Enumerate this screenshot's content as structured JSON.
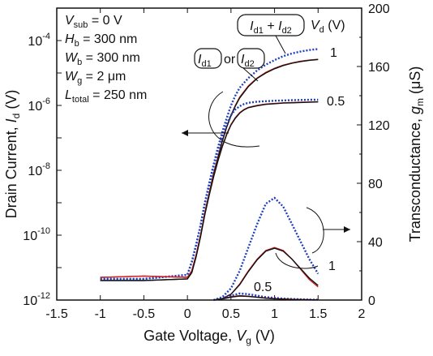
{
  "chart_data": {
    "type": "line",
    "x_axis": {
      "label": "Gate Voltage, ",
      "label_var": "V",
      "label_sub": "g",
      "label_unit": " (V)",
      "range": [
        -1.5,
        2
      ],
      "ticks": [
        "-1.5",
        "-1",
        "-0.5",
        "0",
        "0.5",
        "1",
        "1.5",
        "2"
      ]
    },
    "y_left_axis": {
      "label": "Drain Current, ",
      "label_var": "I",
      "label_sub": "d",
      "label_unit": " (V)",
      "scale": "log",
      "range": [
        1e-12,
        0.001
      ],
      "ticks": [
        {
          "base": "10",
          "exp": "-12",
          "value": 1e-12
        },
        {
          "base": "10",
          "exp": "-10",
          "value": 1e-10
        },
        {
          "base": "10",
          "exp": "-8",
          "value": 1e-08
        },
        {
          "base": "10",
          "exp": "-6",
          "value": 1e-06
        },
        {
          "base": "10",
          "exp": "-4",
          "value": 0.0001
        }
      ]
    },
    "y_right_axis": {
      "label": "Transconductance, ",
      "label_var": "g",
      "label_sub": "m",
      "label_unit": " (μS)",
      "range": [
        0,
        200
      ],
      "ticks": [
        "0",
        "40",
        "80",
        "120",
        "160",
        "200"
      ]
    },
    "params": [
      {
        "var": "V",
        "sub": "sub",
        "rest": " = 0 V"
      },
      {
        "var": "H",
        "sub": "b",
        "rest": " = 300 nm"
      },
      {
        "var": "W",
        "sub": "b",
        "rest": " = 300 nm"
      },
      {
        "var": "W",
        "sub": "g",
        "rest": " = 2 μm"
      },
      {
        "var": "L",
        "sub": "total",
        "rest": " = 250 nm"
      }
    ],
    "legend": {
      "sum_label": {
        "a": "I",
        "a_sub": "d1",
        "op": " + ",
        "b": "I",
        "b_sub": "d2"
      },
      "single_label": {
        "a": "I",
        "a_sub": "d1",
        "op": "or",
        "b": "I",
        "b_sub": "d2"
      },
      "vd_label": {
        "var": "V",
        "sub": "d",
        "unit": " (V)"
      }
    },
    "curve_labels": {
      "vd1_id": "1",
      "vd05_id": "0.5",
      "vd1_gm": "1",
      "vd05_gm": "0.5"
    },
    "series": [
      {
        "axis": "left",
        "color": "#1f3fbf",
        "style": "dotted",
        "x": [
          -1,
          -0.5,
          0,
          0.05,
          0.1,
          0.15,
          0.2,
          0.25,
          0.3,
          0.35,
          0.4,
          0.45,
          0.5,
          0.55,
          0.6,
          0.7,
          0.8,
          0.9,
          1.0,
          1.1,
          1.2,
          1.3,
          1.4,
          1.5
        ],
        "y": [
          4.5e-12,
          4.5e-12,
          6e-12,
          1.5e-11,
          5e-11,
          2e-10,
          1e-09,
          4e-09,
          1.5e-08,
          5e-08,
          1.5e-07,
          4e-07,
          1e-06,
          2e-06,
          3.5e-06,
          7e-06,
          1.2e-05,
          1.8e-05,
          2.5e-05,
          3.3e-05,
          4e-05,
          4.6e-05,
          5.1e-05,
          5.5e-05
        ]
      },
      {
        "axis": "left",
        "color": "#d02020",
        "style": "solid",
        "x": [
          -1,
          -0.5,
          0,
          0.05,
          0.1,
          0.15,
          0.2,
          0.25,
          0.3,
          0.35,
          0.4,
          0.45,
          0.5,
          0.55,
          0.6,
          0.7,
          0.8,
          0.9,
          1.0,
          1.1,
          1.2,
          1.3,
          1.4,
          1.5
        ],
        "y": [
          5e-12,
          5.5e-12,
          5e-12,
          8e-12,
          2.5e-11,
          1e-10,
          5e-10,
          2e-09,
          8e-09,
          2.5e-08,
          8e-08,
          2.2e-07,
          5e-07,
          1e-06,
          1.8e-06,
          4e-06,
          7e-06,
          1.05e-05,
          1.4e-05,
          1.75e-05,
          2.05e-05,
          2.3e-05,
          2.5e-05,
          2.65e-05
        ]
      },
      {
        "axis": "left",
        "color": "#111111",
        "style": "solid",
        "x": [
          -1,
          -0.5,
          0,
          0.05,
          0.1,
          0.15,
          0.2,
          0.25,
          0.3,
          0.35,
          0.4,
          0.45,
          0.5,
          0.55,
          0.6,
          0.7,
          0.8,
          0.9,
          1.0,
          1.1,
          1.2,
          1.3,
          1.4,
          1.5
        ],
        "y": [
          4e-12,
          4e-12,
          4.5e-12,
          7e-12,
          2.2e-11,
          9e-11,
          4.5e-10,
          1.9e-09,
          7.5e-09,
          2.4e-08,
          7.8e-08,
          2.1e-07,
          4.8e-07,
          9.5e-07,
          1.7e-06,
          3.8e-06,
          6.8e-06,
          1e-05,
          1.35e-05,
          1.7e-05,
          2e-05,
          2.25e-05,
          2.45e-05,
          2.6e-05
        ]
      },
      {
        "axis": "left",
        "color": "#1f3fbf",
        "style": "dotted",
        "x": [
          -1,
          -0.5,
          0,
          0.05,
          0.1,
          0.15,
          0.2,
          0.25,
          0.3,
          0.35,
          0.4,
          0.45,
          0.5,
          0.55,
          0.6,
          0.65,
          0.7,
          0.8,
          0.9,
          1.0,
          1.1,
          1.2,
          1.3,
          1.4,
          1.5
        ],
        "y": [
          4.5e-12,
          4.5e-12,
          6e-12,
          1.5e-11,
          5e-11,
          2e-10,
          9e-10,
          3.5e-09,
          1.3e-08,
          4e-08,
          1.1e-07,
          2.6e-07,
          5e-07,
          7.5e-07,
          9.5e-07,
          1.1e-06,
          1.2e-06,
          1.3e-06,
          1.35e-06,
          1.4e-06,
          1.42e-06,
          1.45e-06,
          1.47e-06,
          1.5e-06,
          1.5e-06
        ]
      },
      {
        "axis": "left",
        "color": "#d02020",
        "style": "solid",
        "x": [
          -1,
          -0.5,
          0,
          0.05,
          0.1,
          0.15,
          0.2,
          0.25,
          0.3,
          0.35,
          0.4,
          0.45,
          0.5,
          0.55,
          0.6,
          0.65,
          0.7,
          0.8,
          0.9,
          1.0,
          1.1,
          1.2,
          1.3,
          1.4,
          1.5
        ],
        "y": [
          5e-12,
          5.5e-12,
          5e-12,
          8e-12,
          2.5e-11,
          1e-10,
          4.5e-10,
          1.8e-09,
          6.5e-09,
          2e-08,
          5.5e-08,
          1.3e-07,
          2.6e-07,
          4.2e-07,
          6e-07,
          7.5e-07,
          8.7e-07,
          1e-06,
          1.1e-06,
          1.15e-06,
          1.2e-06,
          1.22e-06,
          1.25e-06,
          1.27e-06,
          1.3e-06
        ]
      },
      {
        "axis": "left",
        "color": "#111111",
        "style": "solid",
        "x": [
          -1,
          -0.5,
          0,
          0.05,
          0.1,
          0.15,
          0.2,
          0.25,
          0.3,
          0.35,
          0.4,
          0.45,
          0.5,
          0.55,
          0.6,
          0.65,
          0.7,
          0.8,
          0.9,
          1.0,
          1.1,
          1.2,
          1.3,
          1.4,
          1.5
        ],
        "y": [
          4e-12,
          4e-12,
          4.5e-12,
          7e-12,
          2.2e-11,
          9e-11,
          4.3e-10,
          1.7e-09,
          6.2e-09,
          1.9e-08,
          5.3e-08,
          1.25e-07,
          2.5e-07,
          4e-07,
          5.8e-07,
          7.3e-07,
          8.5e-07,
          9.8e-07,
          1.08e-06,
          1.13e-06,
          1.18e-06,
          1.2e-06,
          1.23e-06,
          1.25e-06,
          1.28e-06
        ]
      },
      {
        "axis": "right",
        "color": "#1f3fbf",
        "style": "dotted",
        "x": [
          0.3,
          0.4,
          0.5,
          0.6,
          0.7,
          0.8,
          0.9,
          1.0,
          1.1,
          1.2,
          1.3,
          1.4,
          1.5
        ],
        "y": [
          0,
          2,
          8,
          20,
          36,
          52,
          66,
          70,
          64,
          52,
          40,
          28,
          18
        ]
      },
      {
        "axis": "right",
        "color": "#d02020",
        "style": "solid",
        "x": [
          0.3,
          0.4,
          0.5,
          0.6,
          0.7,
          0.8,
          0.9,
          1.0,
          1.1,
          1.2,
          1.3,
          1.4,
          1.5
        ],
        "y": [
          0,
          1,
          4,
          11,
          20,
          28,
          34,
          36,
          34,
          28,
          21,
          14,
          9
        ]
      },
      {
        "axis": "right",
        "color": "#111111",
        "style": "solid",
        "x": [
          0.3,
          0.4,
          0.5,
          0.6,
          0.7,
          0.8,
          0.9,
          1.0,
          1.1,
          1.2,
          1.3,
          1.4,
          1.5
        ],
        "y": [
          0,
          1,
          4,
          10.5,
          19.5,
          27.5,
          33.5,
          35.5,
          33.5,
          28,
          21.5,
          15,
          10
        ]
      },
      {
        "axis": "right",
        "color": "#1f3fbf",
        "style": "dotted",
        "x": [
          0.3,
          0.4,
          0.5,
          0.6,
          0.7,
          0.8,
          0.9,
          1.0,
          1.1,
          1.2,
          1.3,
          1.4,
          1.5
        ],
        "y": [
          0,
          1,
          3,
          4.5,
          4,
          3,
          2,
          1.5,
          1,
          0.7,
          0.5,
          0.3,
          0.2
        ]
      },
      {
        "axis": "right",
        "color": "#d02020",
        "style": "solid",
        "x": [
          0.3,
          0.4,
          0.5,
          0.6,
          0.7,
          0.8,
          0.9,
          1.0,
          1.1,
          1.2,
          1.3,
          1.4,
          1.5
        ],
        "y": [
          0,
          0.8,
          2.2,
          3,
          2.6,
          2,
          1.4,
          1,
          0.7,
          0.5,
          0.3,
          0.2,
          0.1
        ]
      },
      {
        "axis": "right",
        "color": "#111111",
        "style": "solid",
        "x": [
          0.3,
          0.4,
          0.5,
          0.6,
          0.7,
          0.8,
          0.9,
          1.0,
          1.1,
          1.2,
          1.3,
          1.4,
          1.5
        ],
        "y": [
          0,
          0.7,
          2,
          2.8,
          2.5,
          1.9,
          1.3,
          0.9,
          0.6,
          0.4,
          0.3,
          0.2,
          0.1
        ]
      }
    ]
  }
}
